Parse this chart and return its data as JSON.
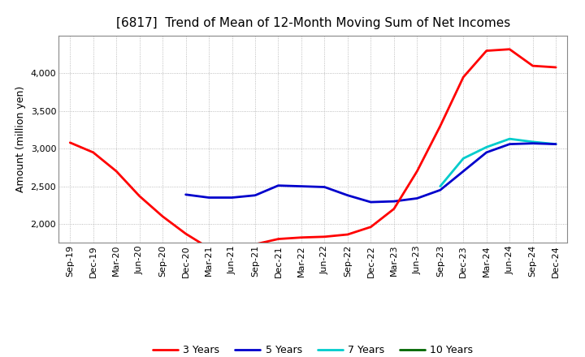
{
  "title": "[6817]  Trend of Mean of 12-Month Moving Sum of Net Incomes",
  "ylabel": "Amount (million yen)",
  "background_color": "#ffffff",
  "grid_color": "#aaaaaa",
  "line_colors": {
    "3 Years": "#ff0000",
    "5 Years": "#0000cc",
    "7 Years": "#00cccc",
    "10 Years": "#006600"
  },
  "x_labels": [
    "Sep-19",
    "Dec-19",
    "Mar-20",
    "Jun-20",
    "Sep-20",
    "Dec-20",
    "Mar-21",
    "Jun-21",
    "Sep-21",
    "Dec-21",
    "Mar-22",
    "Jun-22",
    "Sep-22",
    "Dec-22",
    "Mar-23",
    "Jun-23",
    "Sep-23",
    "Dec-23",
    "Mar-24",
    "Jun-24",
    "Sep-24",
    "Dec-24"
  ],
  "series_3y": [
    3080,
    2950,
    2700,
    2370,
    2100,
    1870,
    1680,
    1700,
    1730,
    1800,
    1820,
    1830,
    1860,
    1960,
    2200,
    2700,
    3300,
    3950,
    4300,
    4320,
    4100,
    4080
  ],
  "series_5y": [
    null,
    null,
    null,
    null,
    null,
    2390,
    2350,
    2350,
    2380,
    2510,
    2500,
    2490,
    2380,
    2290,
    2300,
    2340,
    2450,
    2700,
    2950,
    3060,
    3070,
    3060
  ],
  "series_7y": [
    null,
    null,
    null,
    null,
    null,
    null,
    null,
    null,
    null,
    null,
    null,
    null,
    null,
    null,
    null,
    null,
    2500,
    2870,
    3020,
    3130,
    3090,
    3060
  ],
  "series_10y": [
    null,
    null,
    null,
    null,
    null,
    null,
    null,
    null,
    null,
    null,
    null,
    null,
    null,
    null,
    null,
    null,
    null,
    null,
    null,
    null,
    null,
    null
  ],
  "ylim": [
    1750,
    4500
  ],
  "yticks": [
    2000,
    2500,
    3000,
    3500,
    4000
  ],
  "title_fontsize": 11,
  "axis_fontsize": 9,
  "tick_fontsize": 8,
  "legend_fontsize": 9,
  "linewidth": 2.0
}
